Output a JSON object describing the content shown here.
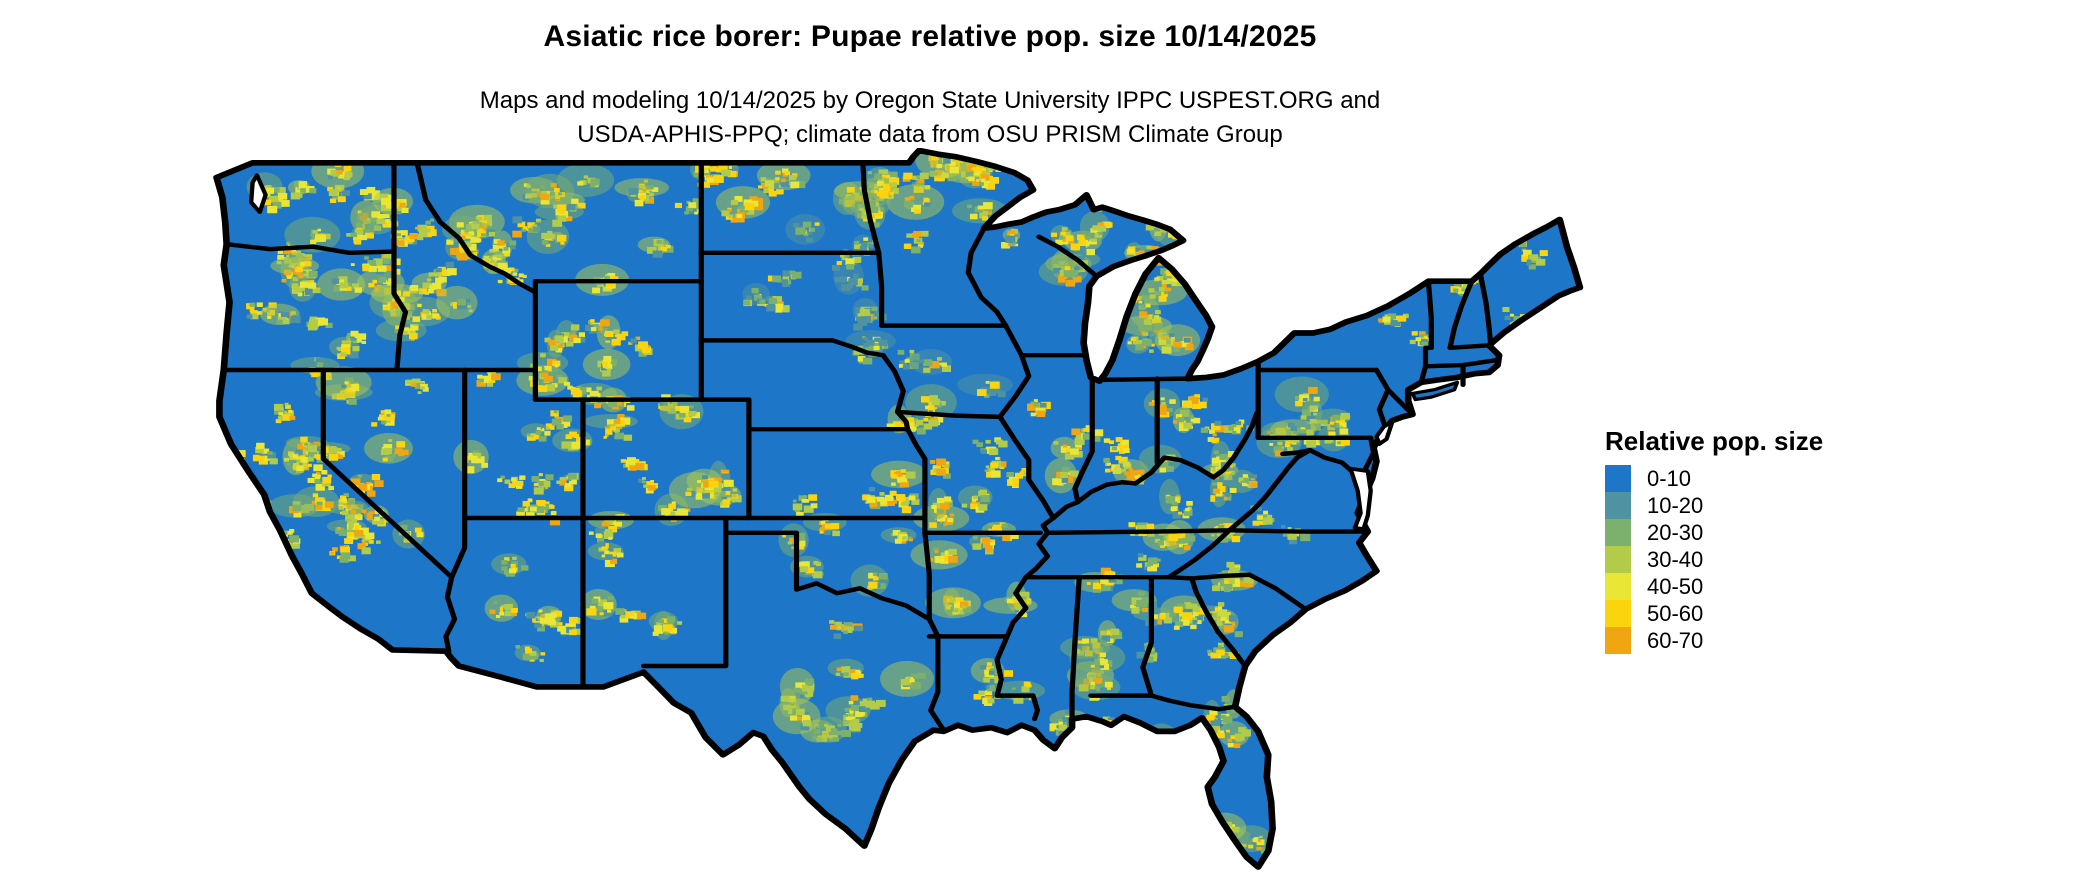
{
  "header": {
    "title": "Asiatic rice borer: Pupae relative pop. size 10/14/2025",
    "subtitle_line1": "Maps and modeling 10/14/2025 by Oregon State University IPPC USPEST.ORG and",
    "subtitle_line2": "USDA-APHIS-PPQ; climate data from OSU PRISM Climate Group"
  },
  "legend": {
    "title": "Relative pop. size",
    "items": [
      {
        "label": "0-10",
        "color": "#1d76c8"
      },
      {
        "label": "10-20",
        "color": "#4f93a2"
      },
      {
        "label": "20-30",
        "color": "#7cb06d"
      },
      {
        "label": "30-40",
        "color": "#b2cc4a"
      },
      {
        "label": "40-50",
        "color": "#e9e636"
      },
      {
        "label": "50-60",
        "color": "#fbd40e"
      },
      {
        "label": "60-70",
        "color": "#f0a512"
      }
    ]
  },
  "map": {
    "region_name": "Contiguous United States",
    "base_class_label": "0-10",
    "base_color": "#1d76c8",
    "boundary_color": "#000000",
    "water_color": "#ffffff"
  }
}
